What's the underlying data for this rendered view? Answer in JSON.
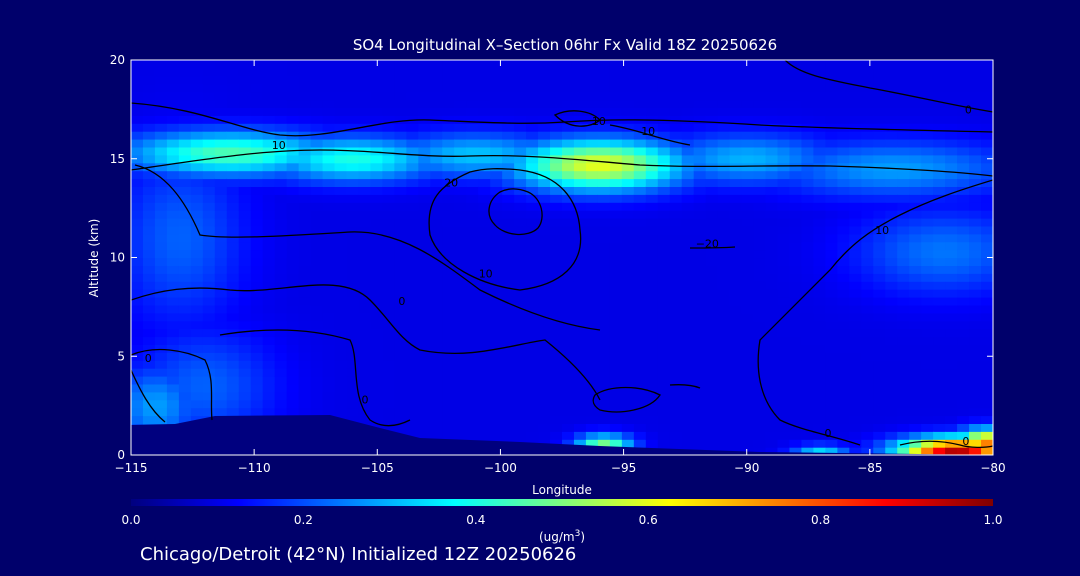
{
  "chart_data": {
    "type": "heatmap",
    "title": "SO4 Longitudinal X–Section 06hr  Fx Valid 18Z 20250626",
    "xlabel": "Longitude",
    "ylabel": "Altitude (km)",
    "xlim": [
      -115,
      -80
    ],
    "ylim": [
      0,
      20
    ],
    "xticks": [
      -115,
      -110,
      -105,
      -100,
      -95,
      -90,
      -85,
      -80
    ],
    "yticks": [
      0,
      5,
      10,
      15,
      20
    ],
    "xtick_labels": [
      "−115",
      "−110",
      "−105",
      "−100",
      "−95",
      "−90",
      "−85",
      "−80"
    ],
    "ytick_labels": [
      "0",
      "5",
      "10",
      "15",
      "20"
    ],
    "colorbar": {
      "label_main": "(ug/m",
      "label_sup": "3",
      "label_end": ")",
      "range": [
        0.0,
        1.0
      ],
      "ticks": [
        0.0,
        0.2,
        0.4,
        0.6,
        0.8,
        1.0
      ],
      "tick_labels": [
        "0.0",
        "0.2",
        "0.4",
        "0.6",
        "0.8",
        "1.0"
      ],
      "colors": [
        "#00007f",
        "#0000ff",
        "#007fff",
        "#00ffff",
        "#7fff7f",
        "#ffff00",
        "#ff7f00",
        "#ff0000",
        "#7f0000"
      ]
    },
    "background_value": 0.1,
    "features": [
      {
        "lon": -111,
        "alt": 15.3,
        "value": 0.45,
        "sx": 3.0,
        "sy": 0.8
      },
      {
        "lon": -106,
        "alt": 15.0,
        "value": 0.4,
        "sx": 2.5,
        "sy": 0.8
      },
      {
        "lon": -96,
        "alt": 14.7,
        "value": 0.6,
        "sx": 2.4,
        "sy": 0.9
      },
      {
        "lon": -101,
        "alt": 15.2,
        "value": 0.32,
        "sx": 2.5,
        "sy": 0.8
      },
      {
        "lon": -90,
        "alt": 15.0,
        "value": 0.3,
        "sx": 2.5,
        "sy": 0.9
      },
      {
        "lon": -84,
        "alt": 14.5,
        "value": 0.28,
        "sx": 3.5,
        "sy": 1.0
      },
      {
        "lon": -113,
        "alt": 11.0,
        "value": 0.22,
        "sx": 1.8,
        "sy": 3.0
      },
      {
        "lon": -114,
        "alt": 2.5,
        "value": 0.28,
        "sx": 1.2,
        "sy": 1.4
      },
      {
        "lon": -112,
        "alt": 3.5,
        "value": 0.22,
        "sx": 2.0,
        "sy": 2.0
      },
      {
        "lon": -82,
        "alt": 10.3,
        "value": 0.24,
        "sx": 2.5,
        "sy": 1.5
      },
      {
        "lon": -95.8,
        "alt": 0.5,
        "value": 0.5,
        "sx": 0.8,
        "sy": 0.4
      },
      {
        "lon": -87,
        "alt": 0.1,
        "value": 0.35,
        "sx": 0.8,
        "sy": 0.3
      },
      {
        "lon": -81.5,
        "alt": 0.2,
        "value": 0.95,
        "sx": 1.6,
        "sy": 0.5
      },
      {
        "lon": -80.3,
        "alt": 0.6,
        "value": 0.75,
        "sx": 0.8,
        "sy": 0.5
      }
    ],
    "contour_labels": [
      {
        "text": "10",
        "lon": -109,
        "alt": 15.5
      },
      {
        "text": "10",
        "lon": -96,
        "alt": 16.7
      },
      {
        "text": "10",
        "lon": -94,
        "alt": 16.2
      },
      {
        "text": "20",
        "lon": -102,
        "alt": 13.6
      },
      {
        "text": "0",
        "lon": -81,
        "alt": 17.3
      },
      {
        "text": "10",
        "lon": -84.5,
        "alt": 11.2
      },
      {
        "text": "10",
        "lon": -100.6,
        "alt": 9.0
      },
      {
        "text": "−20",
        "lon": -91.6,
        "alt": 10.5
      },
      {
        "text": "0",
        "lon": -104,
        "alt": 7.6
      },
      {
        "text": "0",
        "lon": -114.3,
        "alt": 4.7
      },
      {
        "text": "0",
        "lon": -105.5,
        "alt": 2.6
      },
      {
        "text": "0",
        "lon": -86.7,
        "alt": 0.9
      },
      {
        "text": "0",
        "lon": -81.1,
        "alt": 0.5
      }
    ],
    "footer": "Chicago/Detroit (42°N) Initialized 12Z 20250626"
  }
}
